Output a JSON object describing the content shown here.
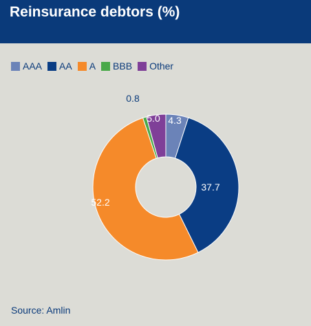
{
  "header": {
    "title": "Reinsurance debtors (%)"
  },
  "chart_data": {
    "type": "pie",
    "categories": [
      "AAA",
      "AA",
      "A",
      "BBB",
      "Other"
    ],
    "values": [
      5.0,
      37.7,
      52.2,
      0.8,
      4.3
    ],
    "labels": [
      "5.0",
      "37.7",
      "52.2",
      "0.8",
      "4.3"
    ],
    "colors": [
      "#6b83b8",
      "#0a3d84",
      "#f58a2a",
      "#4aa94a",
      "#7f3f98"
    ],
    "legend_position": "top-left",
    "donut": true
  },
  "source": {
    "text": "Source: Amlin"
  },
  "colors": {
    "header_bg": "#0a3a7a",
    "background": "#dcdcd6",
    "text": "#0a3a7a"
  }
}
